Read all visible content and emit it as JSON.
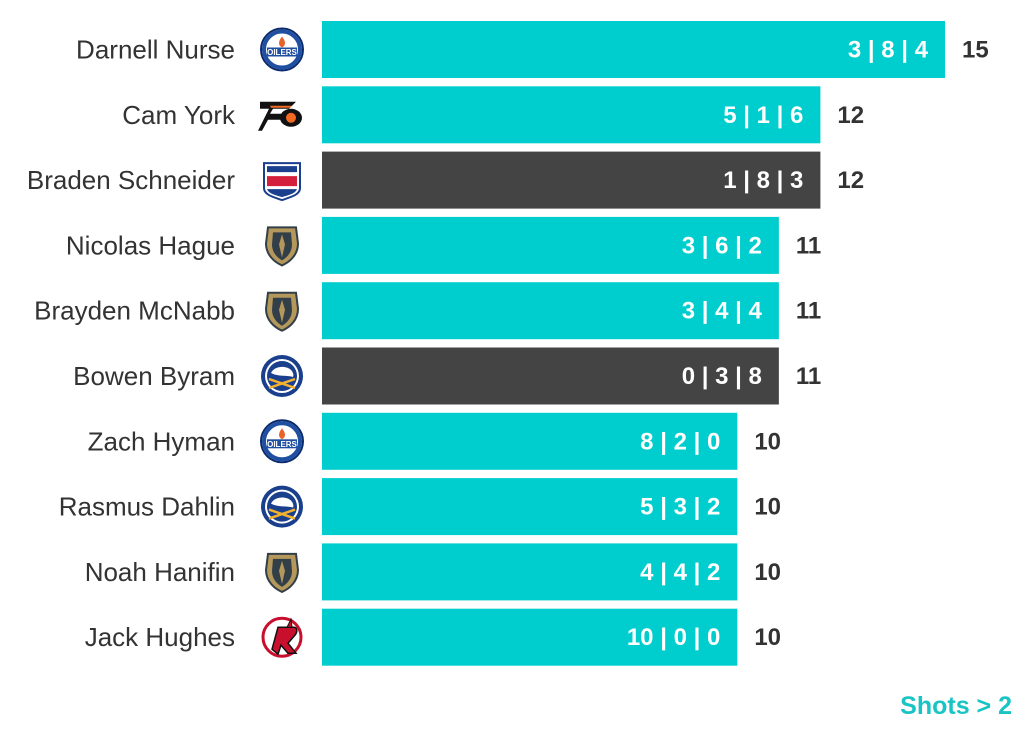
{
  "chart_data": {
    "type": "bar",
    "orientation": "horizontal",
    "categories": [
      "Darnell Nurse",
      "Cam York",
      "Braden Schneider",
      "Nicolas Hague",
      "Brayden McNabb",
      "Bowen Byram",
      "Zach Hyman",
      "Rasmus Dahlin",
      "Noah Hanifin",
      "Jack Hughes"
    ],
    "teams": [
      "Edmonton Oilers",
      "Philadelphia Flyers",
      "New York Rangers",
      "Vegas Golden Knights",
      "Vegas Golden Knights",
      "Buffalo Sabres",
      "Edmonton Oilers",
      "Buffalo Sabres",
      "Vegas Golden Knights",
      "New Jersey Devils"
    ],
    "values": [
      15,
      12,
      12,
      11,
      11,
      11,
      10,
      10,
      10,
      10
    ],
    "bar_labels": [
      "3 | 8 | 4",
      "5 | 1 | 6",
      "1 | 8 | 3",
      "3 | 6 | 2",
      "3 | 4 | 4",
      "0 | 3 | 8",
      "8 | 2 | 0",
      "5 | 3 | 2",
      "4 | 4 | 2",
      "10 | 0 | 0"
    ],
    "highlight": [
      false,
      false,
      true,
      false,
      false,
      true,
      false,
      false,
      false,
      false
    ],
    "xlim": [
      0,
      15
    ],
    "grid": false,
    "legend": "none",
    "colors": {
      "default": "#00cdcd",
      "highlight": "#444444"
    }
  },
  "footnote": {
    "text": "Shots > 2",
    "color": "#18c4c4"
  },
  "icons": [
    "oilers-logo-icon",
    "flyers-logo-icon",
    "rangers-logo-icon",
    "golden-knights-logo-icon",
    "golden-knights-logo-icon",
    "sabres-logo-icon",
    "oilers-logo-icon",
    "sabres-logo-icon",
    "golden-knights-logo-icon",
    "devils-logo-icon"
  ]
}
